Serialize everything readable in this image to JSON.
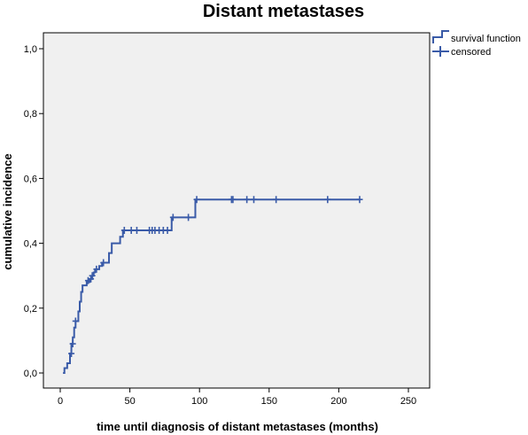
{
  "chart_data": {
    "type": "line",
    "title": "Distant metastases",
    "xlabel": "time until diagnosis of distant metastases (months)",
    "ylabel": "cumulative incidence",
    "xlim": [
      0,
      250
    ],
    "ylim": [
      0,
      1.0
    ],
    "xticks": [
      {
        "value": 0,
        "label": "0"
      },
      {
        "value": 50,
        "label": "50"
      },
      {
        "value": 100,
        "label": "100"
      },
      {
        "value": 150,
        "label": "150"
      },
      {
        "value": 200,
        "label": "200"
      },
      {
        "value": 250,
        "label": "250"
      }
    ],
    "yticks": [
      {
        "value": 0.0,
        "label": "0,0"
      },
      {
        "value": 0.2,
        "label": "0,2"
      },
      {
        "value": 0.4,
        "label": "0,4"
      },
      {
        "value": 0.6,
        "label": "0,6"
      },
      {
        "value": 0.8,
        "label": "0,8"
      },
      {
        "value": 1.0,
        "label": "1,0"
      }
    ],
    "grid": false,
    "legend_position": "top-right",
    "series": [
      {
        "name": "survival function",
        "kind": "step",
        "color": "#3a5ba8",
        "points": [
          [
            2,
            0.0
          ],
          [
            3,
            0.015
          ],
          [
            5,
            0.03
          ],
          [
            7,
            0.06
          ],
          [
            8,
            0.09
          ],
          [
            9,
            0.11
          ],
          [
            10,
            0.14
          ],
          [
            11,
            0.16
          ],
          [
            13,
            0.19
          ],
          [
            14,
            0.22
          ],
          [
            15,
            0.25
          ],
          [
            16,
            0.27
          ],
          [
            19,
            0.28
          ],
          [
            21,
            0.29
          ],
          [
            23,
            0.3
          ],
          [
            24,
            0.31
          ],
          [
            25,
            0.32
          ],
          [
            28,
            0.33
          ],
          [
            30,
            0.34
          ],
          [
            35,
            0.37
          ],
          [
            37,
            0.4
          ],
          [
            43,
            0.42
          ],
          [
            45,
            0.44
          ],
          [
            80,
            0.48
          ],
          [
            97,
            0.535
          ],
          [
            215,
            0.535
          ]
        ]
      },
      {
        "name": "censored",
        "kind": "markers",
        "color": "#3a5ba8",
        "points": [
          [
            8,
            0.06
          ],
          [
            9,
            0.09
          ],
          [
            11,
            0.16
          ],
          [
            20,
            0.285
          ],
          [
            22,
            0.29
          ],
          [
            23,
            0.3
          ],
          [
            26,
            0.32
          ],
          [
            31,
            0.34
          ],
          [
            46,
            0.44
          ],
          [
            51,
            0.44
          ],
          [
            55,
            0.44
          ],
          [
            64,
            0.44
          ],
          [
            66,
            0.44
          ],
          [
            68,
            0.44
          ],
          [
            71,
            0.44
          ],
          [
            74,
            0.44
          ],
          [
            77,
            0.44
          ],
          [
            81,
            0.48
          ],
          [
            92,
            0.48
          ],
          [
            98,
            0.535
          ],
          [
            123,
            0.535
          ],
          [
            124,
            0.535
          ],
          [
            134,
            0.535
          ],
          [
            139,
            0.535
          ],
          [
            155,
            0.535
          ],
          [
            192,
            0.535
          ],
          [
            215,
            0.535
          ]
        ]
      }
    ]
  }
}
